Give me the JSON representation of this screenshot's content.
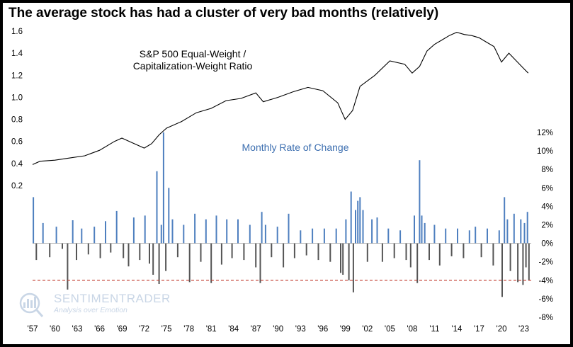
{
  "title": "The average stock has had a cluster of very bad months (relatively)",
  "watermark": {
    "brand": "SENTIMENTRADER",
    "tagline": "Analysis over Emotion"
  },
  "colors": {
    "ratio_line": "#000000",
    "positive_bars": "#4e7fbf",
    "negative_bars": "#555555",
    "threshold_line": "#c0392b",
    "annotation_blue": "#3d6fb0"
  },
  "chart_data": [
    {
      "type": "line",
      "annotation": [
        "S&P 500 Equal-Weight /",
        "Capitalization-Weight Ratio"
      ],
      "x_tick_labels": [
        "'57",
        "'60",
        "'63",
        "'66",
        "'69",
        "'72",
        "'75",
        "'78",
        "'81",
        "'84",
        "'87",
        "'90",
        "'93",
        "'96",
        "'99",
        "'02",
        "'05",
        "'08",
        "'11",
        "'14",
        "'17",
        "'20",
        "'23"
      ],
      "x_range": [
        1957,
        2024
      ],
      "y_ticks": [
        0.2,
        0.4,
        0.6,
        0.8,
        1.0,
        1.2,
        1.4,
        1.6
      ],
      "y_tick_labels": [
        "0.2",
        "0.4",
        "0.6",
        "0.8",
        "1.0",
        "1.2",
        "1.4",
        "1.6"
      ],
      "ylim": [
        0.2,
        1.6
      ],
      "y_axis_side": "left",
      "x": [
        1957,
        1958,
        1960,
        1962,
        1964,
        1966,
        1968,
        1969,
        1970,
        1972,
        1973,
        1974,
        1975,
        1977,
        1979,
        1981,
        1983,
        1985,
        1987,
        1988,
        1990,
        1992,
        1994,
        1996,
        1998,
        1999,
        2000,
        2001,
        2003,
        2005,
        2007,
        2008,
        2009,
        2010,
        2011,
        2012,
        2013,
        2014,
        2015,
        2016,
        2017,
        2018,
        2019,
        2020,
        2021,
        2022,
        2023,
        2023.6
      ],
      "y": [
        0.39,
        0.42,
        0.43,
        0.45,
        0.47,
        0.52,
        0.6,
        0.63,
        0.6,
        0.54,
        0.58,
        0.66,
        0.72,
        0.78,
        0.86,
        0.9,
        0.97,
        0.99,
        1.04,
        0.96,
        1.0,
        1.05,
        1.09,
        1.06,
        0.95,
        0.8,
        0.88,
        1.1,
        1.2,
        1.33,
        1.3,
        1.22,
        1.28,
        1.42,
        1.48,
        1.52,
        1.56,
        1.59,
        1.57,
        1.56,
        1.54,
        1.5,
        1.46,
        1.32,
        1.4,
        1.33,
        1.26,
        1.22
      ]
    },
    {
      "type": "bar",
      "annotation": "Monthly Rate of Change",
      "x_range": [
        1957,
        2024
      ],
      "y_ticks": [
        -8,
        -6,
        -4,
        -2,
        0,
        2,
        4,
        6,
        8,
        10,
        12
      ],
      "y_tick_labels": [
        "-8%",
        "-6%",
        "-4%",
        "-2%",
        "0%",
        "2%",
        "4%",
        "6%",
        "8%",
        "10%",
        "12%"
      ],
      "ylim": [
        -8,
        12
      ],
      "y_axis_side": "right",
      "threshold": -4,
      "threshold_style": "dashed",
      "x": [
        1957.1,
        1957.5,
        1958.4,
        1959.3,
        1960.2,
        1961.0,
        1961.7,
        1962.4,
        1962.9,
        1963.6,
        1964.5,
        1965.3,
        1966.1,
        1966.8,
        1967.5,
        1968.3,
        1969.2,
        1969.9,
        1970.6,
        1971.4,
        1972.1,
        1972.7,
        1973.2,
        1973.7,
        1974.0,
        1974.3,
        1974.6,
        1974.9,
        1975.3,
        1975.8,
        1976.5,
        1977.3,
        1978.1,
        1978.8,
        1979.6,
        1980.3,
        1981.0,
        1981.7,
        1982.4,
        1983.1,
        1983.8,
        1984.6,
        1985.4,
        1986.2,
        1987.0,
        1987.6,
        1987.8,
        1988.3,
        1989.1,
        1989.9,
        1990.7,
        1991.4,
        1992.2,
        1993.0,
        1993.8,
        1994.6,
        1995.4,
        1996.2,
        1997.0,
        1997.8,
        1998.4,
        1998.7,
        1999.1,
        1999.5,
        1999.8,
        2000.1,
        2000.4,
        2000.7,
        2001.0,
        2001.4,
        2002.0,
        2002.6,
        2003.3,
        2004.0,
        2004.8,
        2005.6,
        2006.4,
        2007.2,
        2007.8,
        2008.3,
        2008.7,
        2009.0,
        2009.3,
        2009.7,
        2010.3,
        2011.0,
        2011.7,
        2012.5,
        2013.3,
        2014.1,
        2014.9,
        2015.7,
        2016.5,
        2017.3,
        2018.1,
        2018.9,
        2019.7,
        2020.1,
        2020.4,
        2020.8,
        2021.2,
        2021.7,
        2022.2,
        2022.6,
        2022.9,
        2023.1,
        2023.3,
        2023.5,
        2023.7
      ],
      "values": [
        5.0,
        -1.8,
        2.2,
        -1.5,
        1.8,
        -0.6,
        -5.0,
        2.5,
        -1.8,
        1.6,
        -1.2,
        1.8,
        -1.6,
        2.4,
        -1.0,
        3.5,
        -1.6,
        -2.5,
        2.8,
        -1.8,
        3.0,
        -2.2,
        -3.4,
        7.8,
        -4.4,
        2.0,
        12.0,
        -3.0,
        6.0,
        2.6,
        -1.5,
        2.0,
        -4.2,
        3.2,
        -2.0,
        2.6,
        -4.3,
        3.0,
        -2.3,
        2.6,
        -1.6,
        2.6,
        -1.8,
        2.0,
        -2.6,
        -4.3,
        3.4,
        2.0,
        -1.5,
        1.8,
        -2.6,
        3.2,
        -1.6,
        1.4,
        -1.3,
        1.6,
        -1.8,
        1.6,
        -2.0,
        1.6,
        -3.2,
        -3.4,
        2.6,
        -4.0,
        5.6,
        -5.3,
        3.6,
        4.6,
        5.0,
        3.6,
        -2.0,
        2.6,
        2.8,
        -2.0,
        1.6,
        -1.6,
        1.4,
        -1.8,
        -2.6,
        3.0,
        -4.3,
        9.0,
        3.0,
        2.2,
        -1.8,
        2.0,
        -2.4,
        1.6,
        -1.4,
        1.6,
        -1.6,
        1.4,
        1.8,
        -1.5,
        1.6,
        -2.4,
        1.4,
        -5.8,
        5.0,
        2.6,
        -3.0,
        3.2,
        -4.2,
        2.6,
        -4.5,
        2.2,
        -2.6,
        3.4,
        -4.0
      ]
    }
  ]
}
